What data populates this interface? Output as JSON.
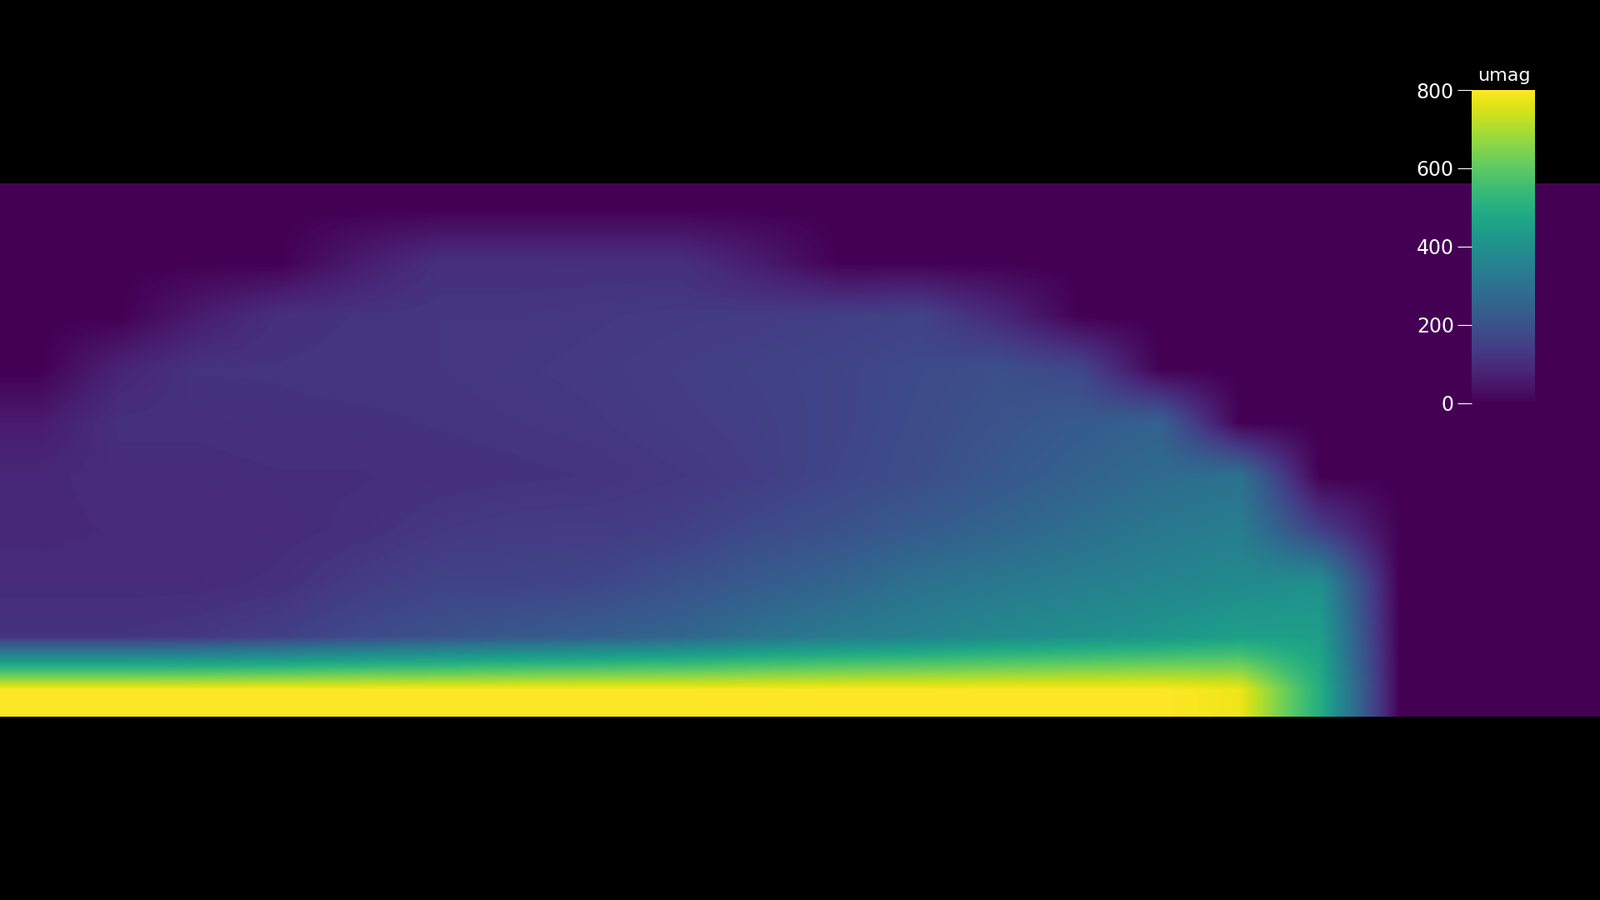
{
  "chart_data": {
    "type": "heatmap",
    "colorbar_label": "umag",
    "colorbar_range": [
      0,
      800
    ],
    "colorbar_ticks": [
      0,
      200,
      400,
      600,
      800
    ],
    "tick_labels": false,
    "cells": [
      [
        0,
        0,
        0,
        0,
        0,
        0,
        0,
        0,
        0,
        0,
        0,
        0,
        0,
        0,
        0,
        0,
        0,
        0,
        0,
        0
      ],
      [
        0,
        0,
        0,
        0,
        60,
        110,
        110,
        110,
        110,
        60,
        0,
        0,
        0,
        0,
        0,
        0,
        0,
        0,
        0,
        0
      ],
      [
        0,
        0,
        60,
        110,
        120,
        125,
        125,
        130,
        135,
        140,
        150,
        160,
        90,
        0,
        0,
        0,
        0,
        0,
        0,
        0
      ],
      [
        0,
        80,
        120,
        120,
        125,
        125,
        130,
        135,
        145,
        155,
        165,
        180,
        195,
        170,
        0,
        0,
        0,
        0,
        0,
        0
      ],
      [
        60,
        110,
        110,
        115,
        115,
        120,
        125,
        130,
        140,
        150,
        165,
        185,
        205,
        230,
        250,
        0,
        0,
        0,
        0,
        0
      ],
      [
        90,
        100,
        100,
        105,
        105,
        110,
        115,
        120,
        130,
        145,
        170,
        190,
        220,
        250,
        280,
        300,
        0,
        0,
        0,
        0
      ],
      [
        90,
        95,
        95,
        100,
        110,
        130,
        140,
        140,
        150,
        180,
        200,
        230,
        260,
        290,
        320,
        340,
        150,
        0,
        0,
        0
      ],
      [
        100,
        100,
        100,
        110,
        140,
        160,
        160,
        170,
        200,
        230,
        260,
        300,
        320,
        340,
        360,
        380,
        400,
        0,
        0,
        0
      ],
      [
        120,
        120,
        130,
        150,
        180,
        200,
        220,
        240,
        260,
        300,
        330,
        350,
        380,
        400,
        420,
        450,
        450,
        0,
        0,
        0
      ],
      [
        800,
        800,
        800,
        800,
        800,
        800,
        800,
        800,
        800,
        800,
        800,
        800,
        800,
        800,
        800,
        780,
        500,
        0,
        0,
        0
      ]
    ]
  }
}
